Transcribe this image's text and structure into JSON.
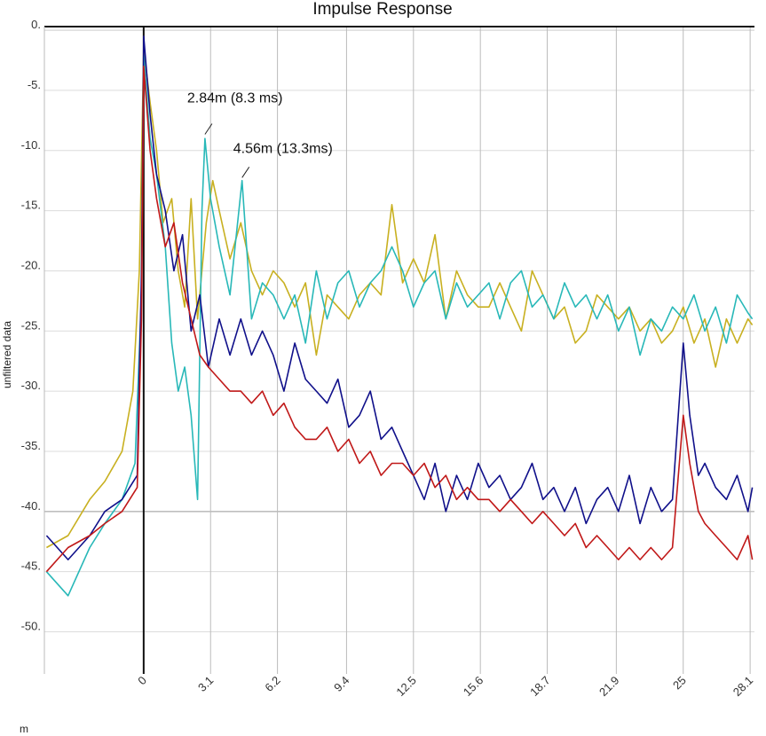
{
  "chart_data": {
    "type": "line",
    "title": "Impulse Response",
    "xlabel": "m",
    "ylabel": "unfiltered data",
    "xlim": [
      -4.6,
      28.3
    ],
    "ylim": [
      -53.5,
      0.3
    ],
    "x_ticks": [
      "0",
      "3.1",
      "6.2",
      "9.4",
      "12.5",
      "15.6",
      "18.7",
      "21.9",
      "25",
      "28.1"
    ],
    "x_tick_values": [
      0,
      3.1,
      6.2,
      9.4,
      12.5,
      15.6,
      18.7,
      21.9,
      25,
      28.1
    ],
    "y_ticks": [
      "0.",
      "-5.",
      "-10.",
      "-15.",
      "-20.",
      "-25.",
      "-30.",
      "-35.",
      "-40.",
      "-45.",
      "-50."
    ],
    "y_tick_values": [
      0,
      -5,
      -10,
      -15,
      -20,
      -25,
      -30,
      -35,
      -40,
      -45,
      -50
    ],
    "grid": true,
    "annotations": [
      {
        "text": "2.84m (8.3 ms)",
        "x": 2.84,
        "y": -8.8
      },
      {
        "text": "4.56m (13.3ms)",
        "x": 4.56,
        "y": -12.4
      }
    ],
    "series": [
      {
        "color": "#c8b020",
        "points": [
          [
            -4.5,
            -43
          ],
          [
            -3.5,
            -42
          ],
          [
            -2.5,
            -39
          ],
          [
            -1.8,
            -37.5
          ],
          [
            -1.0,
            -35
          ],
          [
            -0.5,
            -30
          ],
          [
            -0.2,
            -20
          ],
          [
            0,
            -1.5
          ],
          [
            0.3,
            -6
          ],
          [
            0.6,
            -10
          ],
          [
            0.9,
            -16
          ],
          [
            1.3,
            -14
          ],
          [
            1.6,
            -20
          ],
          [
            1.9,
            -23
          ],
          [
            2.2,
            -14
          ],
          [
            2.5,
            -24
          ],
          [
            2.9,
            -16
          ],
          [
            3.2,
            -12.5
          ],
          [
            3.5,
            -15
          ],
          [
            4,
            -19
          ],
          [
            4.5,
            -16
          ],
          [
            5,
            -20
          ],
          [
            5.5,
            -22
          ],
          [
            6,
            -20
          ],
          [
            6.5,
            -21
          ],
          [
            7,
            -23
          ],
          [
            7.5,
            -21
          ],
          [
            8,
            -27
          ],
          [
            8.5,
            -22
          ],
          [
            9,
            -23
          ],
          [
            9.5,
            -24
          ],
          [
            10,
            -22
          ],
          [
            10.5,
            -21
          ],
          [
            11,
            -22
          ],
          [
            11.5,
            -14.5
          ],
          [
            12,
            -21
          ],
          [
            12.5,
            -19
          ],
          [
            13,
            -21
          ],
          [
            13.5,
            -17
          ],
          [
            14,
            -24
          ],
          [
            14.5,
            -20
          ],
          [
            15,
            -22
          ],
          [
            15.5,
            -23
          ],
          [
            16,
            -23
          ],
          [
            16.5,
            -21
          ],
          [
            17,
            -23
          ],
          [
            17.5,
            -25
          ],
          [
            18,
            -20
          ],
          [
            18.5,
            -22
          ],
          [
            19,
            -24
          ],
          [
            19.5,
            -23
          ],
          [
            20,
            -26
          ],
          [
            20.5,
            -25
          ],
          [
            21,
            -22
          ],
          [
            21.5,
            -23
          ],
          [
            22,
            -24
          ],
          [
            22.5,
            -23
          ],
          [
            23,
            -25
          ],
          [
            23.5,
            -24
          ],
          [
            24,
            -26
          ],
          [
            24.5,
            -25
          ],
          [
            25,
            -23
          ],
          [
            25.5,
            -26
          ],
          [
            26,
            -24
          ],
          [
            26.5,
            -28
          ],
          [
            27,
            -24
          ],
          [
            27.5,
            -26
          ],
          [
            28,
            -24
          ],
          [
            28.2,
            -24.5
          ]
        ]
      },
      {
        "color": "#28b8b8",
        "points": [
          [
            -4.5,
            -45
          ],
          [
            -3.5,
            -47
          ],
          [
            -2.5,
            -43
          ],
          [
            -1.8,
            -41
          ],
          [
            -1.0,
            -39
          ],
          [
            -0.4,
            -36
          ],
          [
            -0.1,
            -22
          ],
          [
            0,
            -2
          ],
          [
            0.3,
            -9
          ],
          [
            0.6,
            -12
          ],
          [
            1.0,
            -18
          ],
          [
            1.3,
            -26
          ],
          [
            1.6,
            -30
          ],
          [
            1.9,
            -28
          ],
          [
            2.2,
            -32
          ],
          [
            2.5,
            -39
          ],
          [
            2.7,
            -15
          ],
          [
            2.84,
            -9
          ],
          [
            3.1,
            -14
          ],
          [
            3.5,
            -18
          ],
          [
            4,
            -22
          ],
          [
            4.56,
            -12.5
          ],
          [
            5,
            -24
          ],
          [
            5.5,
            -21
          ],
          [
            6,
            -22
          ],
          [
            6.5,
            -24
          ],
          [
            7,
            -22
          ],
          [
            7.5,
            -26
          ],
          [
            8,
            -20
          ],
          [
            8.5,
            -24
          ],
          [
            9,
            -21
          ],
          [
            9.5,
            -20
          ],
          [
            10,
            -23
          ],
          [
            10.5,
            -21
          ],
          [
            11,
            -20
          ],
          [
            11.5,
            -18
          ],
          [
            12,
            -20
          ],
          [
            12.5,
            -23
          ],
          [
            13,
            -21
          ],
          [
            13.5,
            -20
          ],
          [
            14,
            -24
          ],
          [
            14.5,
            -21
          ],
          [
            15,
            -23
          ],
          [
            15.5,
            -22
          ],
          [
            16,
            -21
          ],
          [
            16.5,
            -24
          ],
          [
            17,
            -21
          ],
          [
            17.5,
            -20
          ],
          [
            18,
            -23
          ],
          [
            18.5,
            -22
          ],
          [
            19,
            -24
          ],
          [
            19.5,
            -21
          ],
          [
            20,
            -23
          ],
          [
            20.5,
            -22
          ],
          [
            21,
            -24
          ],
          [
            21.5,
            -22
          ],
          [
            22,
            -25
          ],
          [
            22.5,
            -23
          ],
          [
            23,
            -27
          ],
          [
            23.5,
            -24
          ],
          [
            24,
            -25
          ],
          [
            24.5,
            -23
          ],
          [
            25,
            -24
          ],
          [
            25.5,
            -22
          ],
          [
            26,
            -25
          ],
          [
            26.5,
            -23
          ],
          [
            27,
            -26
          ],
          [
            27.5,
            -22
          ],
          [
            28,
            -23.5
          ],
          [
            28.2,
            -24
          ]
        ]
      },
      {
        "color": "#10108a",
        "points": [
          [
            -4.5,
            -42
          ],
          [
            -3.5,
            -44
          ],
          [
            -2.5,
            -42
          ],
          [
            -1.8,
            -40
          ],
          [
            -1.0,
            -39
          ],
          [
            -0.3,
            -37
          ],
          [
            -0.1,
            -20
          ],
          [
            0,
            -0.5
          ],
          [
            0.3,
            -7
          ],
          [
            0.6,
            -12
          ],
          [
            1.0,
            -15
          ],
          [
            1.4,
            -20
          ],
          [
            1.8,
            -17
          ],
          [
            2.2,
            -25
          ],
          [
            2.6,
            -22
          ],
          [
            3.0,
            -28
          ],
          [
            3.5,
            -24
          ],
          [
            4,
            -27
          ],
          [
            4.5,
            -24
          ],
          [
            5,
            -27
          ],
          [
            5.5,
            -25
          ],
          [
            6,
            -27
          ],
          [
            6.5,
            -30
          ],
          [
            7,
            -26
          ],
          [
            7.5,
            -29
          ],
          [
            8,
            -30
          ],
          [
            8.5,
            -31
          ],
          [
            9,
            -29
          ],
          [
            9.5,
            -33
          ],
          [
            10,
            -32
          ],
          [
            10.5,
            -30
          ],
          [
            11,
            -34
          ],
          [
            11.5,
            -33
          ],
          [
            12,
            -35
          ],
          [
            12.5,
            -37
          ],
          [
            13,
            -39
          ],
          [
            13.5,
            -36
          ],
          [
            14,
            -40
          ],
          [
            14.5,
            -37
          ],
          [
            15,
            -39
          ],
          [
            15.5,
            -36
          ],
          [
            16,
            -38
          ],
          [
            16.5,
            -37
          ],
          [
            17,
            -39
          ],
          [
            17.5,
            -38
          ],
          [
            18,
            -36
          ],
          [
            18.5,
            -39
          ],
          [
            19,
            -38
          ],
          [
            19.5,
            -40
          ],
          [
            20,
            -38
          ],
          [
            20.5,
            -41
          ],
          [
            21,
            -39
          ],
          [
            21.5,
            -38
          ],
          [
            22,
            -40
          ],
          [
            22.5,
            -37
          ],
          [
            23,
            -41
          ],
          [
            23.5,
            -38
          ],
          [
            24,
            -40
          ],
          [
            24.5,
            -39
          ],
          [
            25,
            -26
          ],
          [
            25.3,
            -32
          ],
          [
            25.7,
            -37
          ],
          [
            26,
            -36
          ],
          [
            26.5,
            -38
          ],
          [
            27,
            -39
          ],
          [
            27.5,
            -37
          ],
          [
            28,
            -40
          ],
          [
            28.2,
            -38
          ]
        ]
      },
      {
        "color": "#c01818",
        "points": [
          [
            -4.5,
            -45
          ],
          [
            -3.5,
            -43
          ],
          [
            -2.5,
            -42
          ],
          [
            -1.8,
            -41
          ],
          [
            -1.0,
            -40
          ],
          [
            -0.3,
            -38
          ],
          [
            -0.1,
            -24
          ],
          [
            0,
            -3
          ],
          [
            0.3,
            -10
          ],
          [
            0.6,
            -14
          ],
          [
            1.0,
            -18
          ],
          [
            1.4,
            -16
          ],
          [
            1.8,
            -21
          ],
          [
            2.2,
            -24
          ],
          [
            2.6,
            -27
          ],
          [
            3.0,
            -28
          ],
          [
            3.5,
            -29
          ],
          [
            4,
            -30
          ],
          [
            4.5,
            -30
          ],
          [
            5,
            -31
          ],
          [
            5.5,
            -30
          ],
          [
            6,
            -32
          ],
          [
            6.5,
            -31
          ],
          [
            7,
            -33
          ],
          [
            7.5,
            -34
          ],
          [
            8,
            -34
          ],
          [
            8.5,
            -33
          ],
          [
            9,
            -35
          ],
          [
            9.5,
            -34
          ],
          [
            10,
            -36
          ],
          [
            10.5,
            -35
          ],
          [
            11,
            -37
          ],
          [
            11.5,
            -36
          ],
          [
            12,
            -36
          ],
          [
            12.5,
            -37
          ],
          [
            13,
            -36
          ],
          [
            13.5,
            -38
          ],
          [
            14,
            -37
          ],
          [
            14.5,
            -39
          ],
          [
            15,
            -38
          ],
          [
            15.5,
            -39
          ],
          [
            16,
            -39
          ],
          [
            16.5,
            -40
          ],
          [
            17,
            -39
          ],
          [
            17.5,
            -40
          ],
          [
            18,
            -41
          ],
          [
            18.5,
            -40
          ],
          [
            19,
            -41
          ],
          [
            19.5,
            -42
          ],
          [
            20,
            -41
          ],
          [
            20.5,
            -43
          ],
          [
            21,
            -42
          ],
          [
            21.5,
            -43
          ],
          [
            22,
            -44
          ],
          [
            22.5,
            -43
          ],
          [
            23,
            -44
          ],
          [
            23.5,
            -43
          ],
          [
            24,
            -44
          ],
          [
            24.5,
            -43
          ],
          [
            25,
            -32
          ],
          [
            25.3,
            -36
          ],
          [
            25.7,
            -40
          ],
          [
            26,
            -41
          ],
          [
            26.5,
            -42
          ],
          [
            27,
            -43
          ],
          [
            27.5,
            -44
          ],
          [
            28,
            -42
          ],
          [
            28.2,
            -44
          ]
        ]
      }
    ]
  }
}
